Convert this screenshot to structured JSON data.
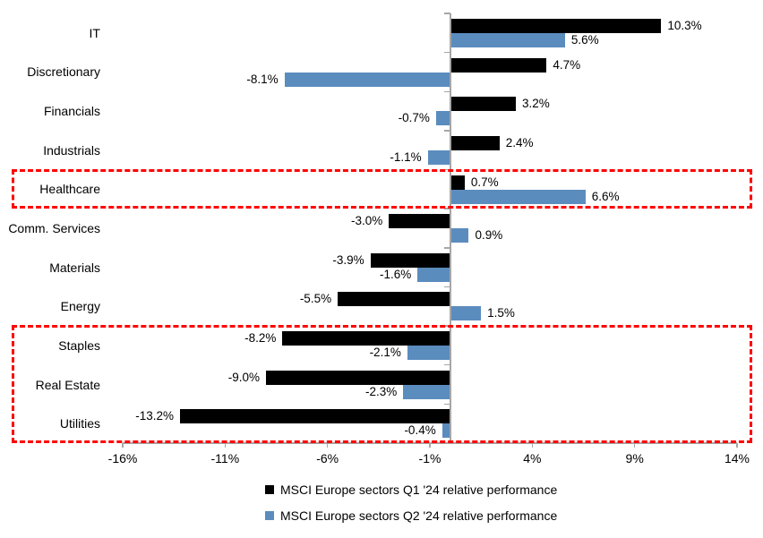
{
  "chart_data": {
    "type": "bar",
    "orientation": "horizontal",
    "title": "",
    "categories": [
      "IT",
      "Discretionary",
      "Financials",
      "Industrials",
      "Healthcare",
      "Comm. Services",
      "Materials",
      "Energy",
      "Staples",
      "Real Estate",
      "Utilities"
    ],
    "series": [
      {
        "name": "MSCI Europe sectors Q1 '24 relative performance",
        "color": "#000000",
        "values": [
          10.3,
          4.7,
          3.2,
          2.4,
          0.7,
          -3.0,
          -3.9,
          -5.5,
          -8.2,
          -9.0,
          -13.2
        ]
      },
      {
        "name": "MSCI Europe sectors Q2 '24 relative performance",
        "color": "#5B8CBE",
        "values": [
          5.6,
          -8.1,
          -0.7,
          -1.1,
          6.6,
          0.9,
          -1.6,
          1.5,
          -2.1,
          -2.3,
          -0.4
        ]
      }
    ],
    "value_label_format": "one-decimal-percent",
    "x_axis": {
      "min": -16,
      "max": 14,
      "tick_step": 5,
      "tick_values": [
        -16,
        -11,
        -6,
        -1,
        4,
        9,
        14
      ],
      "tick_labels": [
        "-16%",
        "-11%",
        "-6%",
        "-1%",
        "4%",
        "9%",
        "14%"
      ],
      "axis_color": "#A6A6A6"
    },
    "grid": false,
    "highlight_boxes": [
      {
        "sectors": [
          "Healthcare"
        ],
        "start_index": 4,
        "end_index": 4,
        "color": "#FF0000",
        "style": "dashed"
      },
      {
        "sectors": [
          "Staples",
          "Real Estate",
          "Utilities"
        ],
        "start_index": 8,
        "end_index": 10,
        "color": "#FF0000",
        "style": "dashed"
      }
    ],
    "legend": {
      "position": "bottom-center",
      "items": [
        {
          "label": "MSCI Europe sectors Q1 '24 relative performance",
          "color": "#000000"
        },
        {
          "label": "MSCI Europe sectors Q2 '24 relative performance",
          "color": "#5B8CBE"
        }
      ]
    }
  }
}
